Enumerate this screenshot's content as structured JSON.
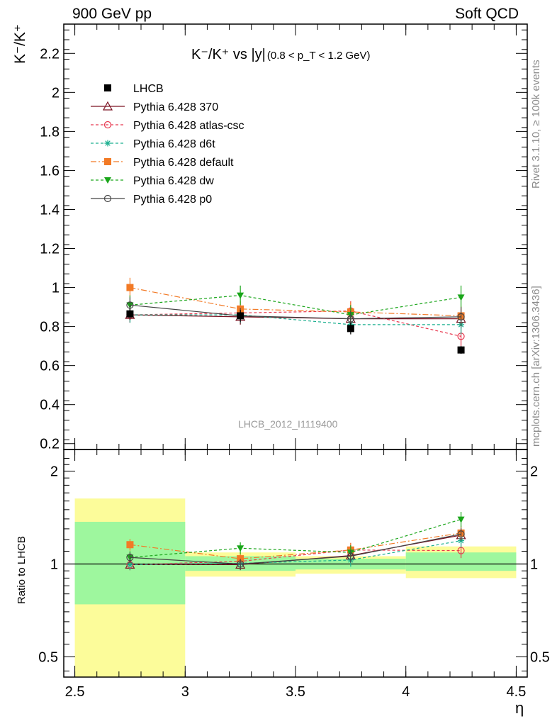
{
  "header": {
    "left": "900 GeV pp",
    "right": "Soft QCD"
  },
  "side_labels": {
    "rivet": "Rivet 3.1.10, ≥ 100k events",
    "mcplots": "mcplots.cern.ch [arXiv:1306.3436]"
  },
  "watermark": "LHCB_2012_I1119400",
  "chart_data": [
    {
      "type": "line",
      "title_main": "K⁻/K⁺ vs |y|",
      "title_cut": "(0.8 < p_T < 1.2 GeV)",
      "ylabel": "K⁻/K⁺",
      "xlabel": "η",
      "xlim": [
        2.45,
        4.55
      ],
      "ylim": [
        0.17,
        2.35
      ],
      "x_ticks": [
        2.5,
        3,
        3.5,
        4,
        4.5
      ],
      "x_tick_labels": [
        "2.5",
        "3",
        "3.5",
        "4",
        "4.5"
      ],
      "y_ticks": [
        0.2,
        0.4,
        0.6,
        0.8,
        1,
        1.2,
        1.4,
        1.6,
        1.8,
        2,
        2.2
      ],
      "y_tick_labels": [
        "0.2",
        "0.4",
        "0.6",
        "0.8",
        "1",
        "1.2",
        "1.4",
        "1.6",
        "1.8",
        "2",
        "2.2"
      ],
      "legend_position": "top-left",
      "x": [
        2.75,
        3.25,
        3.75,
        4.25
      ],
      "series": [
        {
          "name": "LHCB",
          "color": "#000000",
          "marker": "square-filled",
          "line": "none",
          "values": [
            0.865,
            0.855,
            0.79,
            0.68
          ],
          "errors": [
            0.03,
            0.03,
            0.03,
            0.02
          ]
        },
        {
          "name": "Pythia 6.428 370",
          "color": "#7b1020",
          "marker": "triangle-open",
          "line": "solid",
          "values": [
            0.86,
            0.85,
            0.84,
            0.84
          ],
          "errors": [
            0.04,
            0.04,
            0.04,
            0.05
          ]
        },
        {
          "name": "Pythia 6.428 atlas-csc",
          "color": "#e8384f",
          "marker": "circle-open",
          "line": "dashed",
          "values": [
            0.86,
            0.87,
            0.88,
            0.75
          ],
          "errors": [
            0.04,
            0.04,
            0.05,
            0.05
          ]
        },
        {
          "name": "Pythia 6.428 d6t",
          "color": "#1aaf8f",
          "marker": "star",
          "line": "dashed",
          "values": [
            0.86,
            0.86,
            0.81,
            0.81
          ],
          "errors": [
            0.04,
            0.04,
            0.04,
            0.05
          ]
        },
        {
          "name": "Pythia 6.428 default",
          "color": "#f27a26",
          "marker": "square-filled",
          "line": "dashdot",
          "values": [
            1.0,
            0.89,
            0.875,
            0.855
          ],
          "errors": [
            0.05,
            0.04,
            0.05,
            0.05
          ]
        },
        {
          "name": "Pythia 6.428 dw",
          "color": "#1aa61a",
          "marker": "triangle-down-filled",
          "line": "dashed",
          "values": [
            0.91,
            0.96,
            0.86,
            0.95
          ],
          "errors": [
            0.05,
            0.05,
            0.05,
            0.06
          ]
        },
        {
          "name": "Pythia 6.428 p0",
          "color": "#444444",
          "marker": "circle-open",
          "line": "solid",
          "values": [
            0.91,
            0.855,
            0.84,
            0.85
          ],
          "errors": [
            0.04,
            0.04,
            0.04,
            0.05
          ]
        }
      ]
    },
    {
      "type": "line",
      "ylabel": "Ratio to LHCB",
      "y_scale": "log",
      "xlim": [
        2.45,
        4.55
      ],
      "ylim": [
        0.43,
        2.35
      ],
      "x_ticks": [
        2.5,
        3,
        3.5,
        4,
        4.5
      ],
      "y_ticks": [
        0.5,
        1,
        2
      ],
      "y_tick_labels": [
        "0.5",
        "1",
        "2"
      ],
      "reference_line": 1,
      "uncertainty_bands": {
        "x_edges": [
          2.5,
          3,
          3.5,
          4,
          4.5
        ],
        "inner_color": "#9ef79e",
        "outer_color": "#fcfc9a",
        "inner": [
          [
            0.74,
            1.37
          ],
          [
            0.95,
            1.06
          ],
          [
            0.96,
            1.04
          ],
          [
            0.95,
            1.09
          ]
        ],
        "outer": [
          [
            0.43,
            1.63
          ],
          [
            0.91,
            1.09
          ],
          [
            0.93,
            1.06
          ],
          [
            0.9,
            1.14
          ]
        ]
      },
      "x": [
        2.75,
        3.25,
        3.75,
        4.25
      ],
      "series": [
        {
          "name": "Pythia 6.428 370",
          "values": [
            0.995,
            0.995,
            1.065,
            1.24
          ],
          "errors": [
            0.04,
            0.04,
            0.05,
            0.06
          ]
        },
        {
          "name": "Pythia 6.428 atlas-csc",
          "values": [
            0.995,
            1.02,
            1.11,
            1.105
          ],
          "errors": [
            0.04,
            0.04,
            0.06,
            0.06
          ]
        },
        {
          "name": "Pythia 6.428 d6t",
          "values": [
            0.995,
            1.005,
            1.03,
            1.19
          ],
          "errors": [
            0.04,
            0.04,
            0.05,
            0.06
          ]
        },
        {
          "name": "Pythia 6.428 default",
          "values": [
            1.155,
            1.04,
            1.11,
            1.26
          ],
          "errors": [
            0.05,
            0.04,
            0.06,
            0.07
          ]
        },
        {
          "name": "Pythia 6.428 dw",
          "values": [
            1.05,
            1.125,
            1.09,
            1.395
          ],
          "errors": [
            0.05,
            0.05,
            0.06,
            0.08
          ]
        },
        {
          "name": "Pythia 6.428 p0",
          "values": [
            1.05,
            1.0,
            1.06,
            1.25
          ],
          "errors": [
            0.04,
            0.04,
            0.05,
            0.06
          ]
        }
      ]
    }
  ]
}
